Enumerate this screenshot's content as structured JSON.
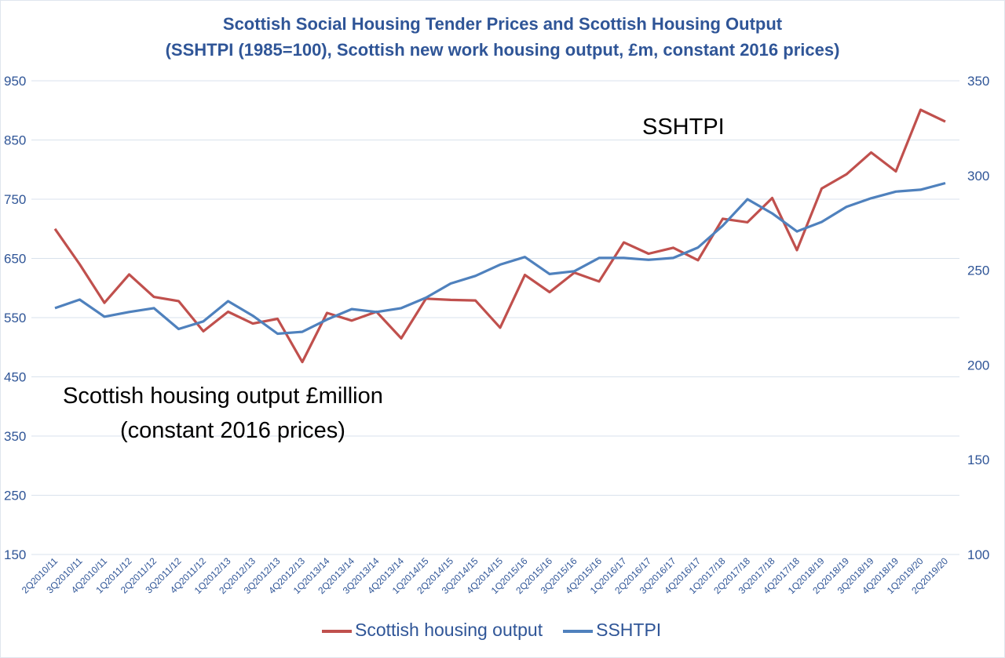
{
  "chart_data": {
    "type": "line",
    "title": "Scottish Social Housing Tender Prices and Scottish Housing Output",
    "subtitle": "(SSHTPI (1985=100), Scottish new work housing output, £m, constant 2016 prices)",
    "categories": [
      "2Q2010/11",
      "3Q2010/11",
      "4Q2010/11",
      "1Q2011/12",
      "2Q2011/12",
      "3Q2011/12",
      "4Q2011/12",
      "1Q2012/13",
      "2Q2012/13",
      "3Q2012/13",
      "4Q2012/13",
      "1Q2013/14",
      "2Q2013/14",
      "3Q2013/14",
      "4Q2013/14",
      "1Q2014/15",
      "2Q2014/15",
      "3Q2014/15",
      "4Q2014/15",
      "1Q2015/16",
      "2Q2015/16",
      "3Q2015/16",
      "4Q2015/16",
      "1Q2016/17",
      "2Q2016/17",
      "3Q2016/17",
      "4Q2016/17",
      "1Q2017/18",
      "2Q2017/18",
      "3Q2017/18",
      "4Q2017/18",
      "1Q2018/19",
      "2Q2018/19",
      "3Q2018/19",
      "4Q2018/19",
      "1Q2019/20",
      "2Q2019/20"
    ],
    "series": [
      {
        "name": "Scottish housing output",
        "axis": "left",
        "color": "#c0504d",
        "values": [
          700,
          640,
          575,
          623,
          585,
          578,
          527,
          560,
          540,
          548,
          475,
          558,
          545,
          560,
          515,
          582,
          580,
          579,
          533,
          622,
          593,
          626,
          611,
          677,
          658,
          668,
          647,
          717,
          711,
          752,
          664,
          768,
          792,
          829,
          797,
          901,
          881
        ]
      },
      {
        "name": "SSHTPI",
        "axis": "right",
        "color": "#4f81bd",
        "values": [
          230,
          234.5,
          225.5,
          228,
          230,
          219,
          223,
          233.7,
          226,
          216.5,
          217.5,
          224,
          229.5,
          228,
          230,
          235.5,
          243,
          247,
          253,
          257,
          248,
          249.5,
          256.5,
          256.5,
          255.5,
          256.5,
          262,
          273.5,
          287.5,
          280,
          270.5,
          275.5,
          283.5,
          288,
          291.5,
          292.5,
          296
        ]
      }
    ],
    "y_left": {
      "min": 150,
      "max": 950,
      "ticks": [
        "950",
        "850",
        "750",
        "650",
        "550",
        "450",
        "350",
        "250",
        "150"
      ]
    },
    "y_right": {
      "min": 100,
      "max": 350,
      "ticks": [
        "350",
        "300",
        "250",
        "200",
        "150",
        "100"
      ]
    },
    "grid": true,
    "legend_position": "bottom",
    "annotations": {
      "sshtpi": "SSHTPI",
      "output_line1": "Scottish housing output £million",
      "output_line2": "(constant 2016 prices)"
    }
  }
}
